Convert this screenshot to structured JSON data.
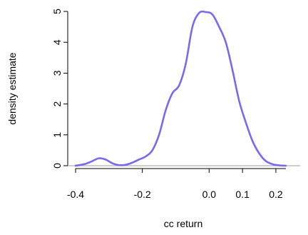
{
  "chart_data": {
    "type": "line",
    "title": "",
    "xlabel": "cc return",
    "ylabel": "density estimate",
    "xlim": [
      -0.42,
      0.26
    ],
    "ylim": [
      -0.05,
      5.0
    ],
    "x_ticks": [
      -0.4,
      -0.2,
      0.0,
      0.1,
      0.2
    ],
    "x_tick_labels": [
      "-0.4",
      "-0.2",
      "0.0",
      "0.1",
      "0.2"
    ],
    "y_ticks": [
      0,
      1,
      2,
      3,
      4,
      5
    ],
    "y_tick_labels": [
      "0",
      "1",
      "2",
      "3",
      "4",
      "5"
    ],
    "baseline": 0,
    "baseline_color": "#b0b0b0",
    "line_color": "#7b68ee",
    "grid": false,
    "series": [
      {
        "x": [
          -0.4,
          -0.37,
          -0.35,
          -0.33,
          -0.31,
          -0.29,
          -0.27,
          -0.25,
          -0.23,
          -0.21,
          -0.19,
          -0.17,
          -0.15,
          -0.13,
          -0.11,
          -0.09,
          -0.07,
          -0.05,
          -0.03,
          -0.01,
          0.01,
          0.03,
          0.05,
          0.07,
          0.09,
          0.11,
          0.13,
          0.15,
          0.17,
          0.19,
          0.21,
          0.23
        ],
        "y": [
          0.0,
          0.06,
          0.15,
          0.24,
          0.2,
          0.08,
          0.02,
          0.03,
          0.1,
          0.2,
          0.3,
          0.5,
          1.0,
          1.8,
          2.35,
          2.6,
          3.3,
          4.5,
          4.95,
          4.98,
          4.9,
          4.5,
          4.0,
          3.1,
          2.1,
          1.4,
          0.8,
          0.4,
          0.15,
          0.05,
          0.01,
          0.0
        ]
      }
    ]
  }
}
